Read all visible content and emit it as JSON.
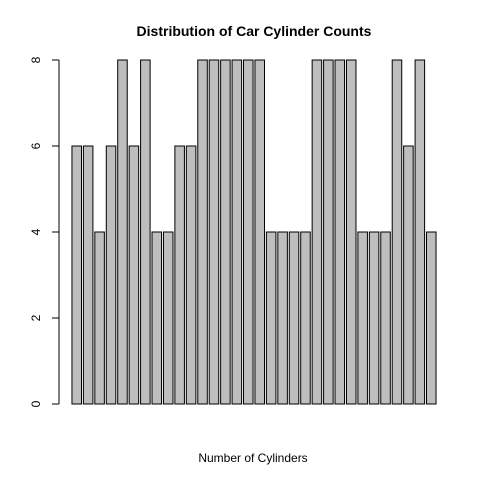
{
  "chart_data": {
    "type": "bar",
    "title": "Distribution of Car Cylinder Counts",
    "xlabel": "Number of Cylinders",
    "ylabel": "",
    "ylim": [
      0,
      8
    ],
    "yticks": [
      0,
      2,
      4,
      6,
      8
    ],
    "values": [
      6,
      6,
      4,
      6,
      8,
      6,
      8,
      4,
      4,
      6,
      6,
      8,
      8,
      8,
      8,
      8,
      8,
      4,
      4,
      4,
      4,
      8,
      8,
      8,
      8,
      4,
      4,
      4,
      8,
      6,
      8,
      4
    ],
    "bar_fill": "#bebebe",
    "bar_stroke": "#000000",
    "grid": false
  }
}
